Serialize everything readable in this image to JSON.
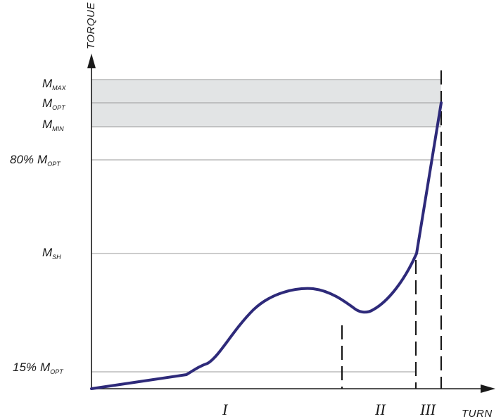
{
  "axes": {
    "y_title": "TORQUE",
    "x_title": "TURN"
  },
  "levels": [
    {
      "id": "m-max",
      "prefix": "",
      "main": "M",
      "sub": "MAX"
    },
    {
      "id": "m-opt",
      "prefix": "",
      "main": "M",
      "sub": "OPT"
    },
    {
      "id": "m-min",
      "prefix": "",
      "main": "M",
      "sub": "MIN"
    },
    {
      "id": "80-opt",
      "prefix": "80%",
      "main": "M",
      "sub": "OPT"
    },
    {
      "id": "m-sh",
      "prefix": "",
      "main": "M",
      "sub": "SH"
    },
    {
      "id": "15-opt",
      "prefix": "15%",
      "main": "M",
      "sub": "OPT"
    }
  ],
  "zones": [
    "I",
    "II",
    "III"
  ],
  "colors": {
    "curve": "#2e2a7a",
    "band": "#e2e4e5",
    "gridline": "#9a9a9a",
    "axis": "#1a1a1a"
  }
}
